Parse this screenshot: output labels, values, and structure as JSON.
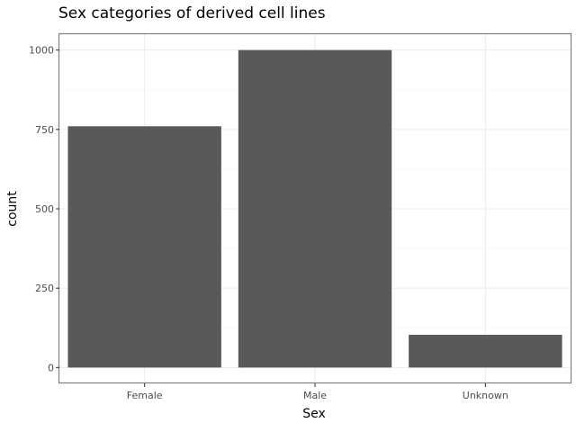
{
  "chart_data": {
    "type": "bar",
    "title": "Sex categories of derived cell lines",
    "xlabel": "Sex",
    "ylabel": "count",
    "categories": [
      "Female",
      "Male",
      "Unknown"
    ],
    "values": [
      760,
      1000,
      103
    ],
    "ylim": [
      -50,
      1050
    ],
    "yticks": [
      0,
      250,
      500,
      750,
      1000
    ],
    "grid": true,
    "legend": "none",
    "colors": {
      "bar": "#595959",
      "grid": "#ebebeb",
      "frame": "#7f7f7f"
    }
  }
}
